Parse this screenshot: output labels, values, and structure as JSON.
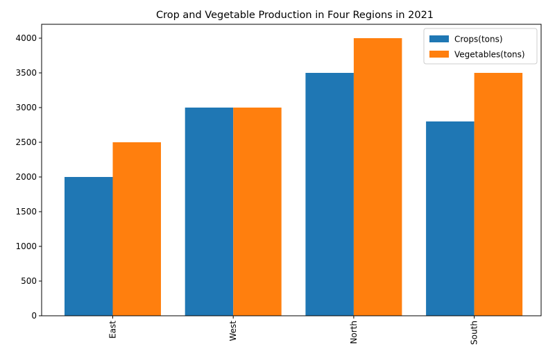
{
  "chart_data": {
    "type": "bar",
    "title": "Crop and Vegetable Production in Four Regions in 2021",
    "xlabel": "",
    "ylabel": "",
    "categories": [
      "East",
      "West",
      "North",
      "South"
    ],
    "series": [
      {
        "name": "Crops(tons)",
        "values": [
          2000,
          3000,
          3500,
          2800
        ],
        "color": "#1f77b4"
      },
      {
        "name": "Vegetables(tons)",
        "values": [
          2500,
          3000,
          4000,
          3500
        ],
        "color": "#ff7f0e"
      }
    ],
    "ylim": [
      0,
      4200
    ],
    "yticks": [
      0,
      500,
      1000,
      1500,
      2000,
      2500,
      3000,
      3500,
      4000
    ],
    "grid": false,
    "legend_position": "top-right",
    "xtick_rotation": "vertical"
  }
}
